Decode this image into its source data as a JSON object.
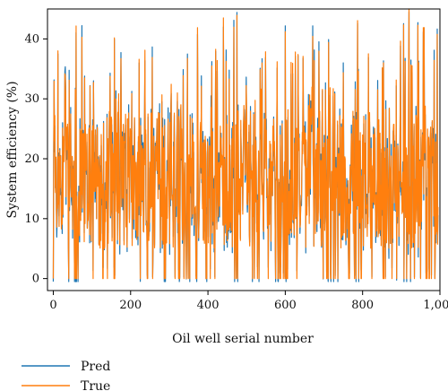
{
  "chart_data": {
    "type": "line",
    "xlabel": "Oil well serial number",
    "ylabel": "System efficiency (%)",
    "xlim": [
      -15,
      1000
    ],
    "ylim": [
      -2,
      45
    ],
    "xticks": [
      0,
      200,
      400,
      600,
      800,
      1000
    ],
    "xtick_labels": [
      "0",
      "200",
      "400",
      "600",
      "800",
      "1,000"
    ],
    "yticks": [
      0,
      10,
      20,
      30,
      40
    ],
    "yticks_labels": [
      "0",
      "10",
      "20",
      "30",
      "40"
    ],
    "legend_position": "bottom-left",
    "series": [
      {
        "name": "Pred",
        "color": "#1f77b4"
      },
      {
        "name": "True",
        "color": "#ff7f0e"
      }
    ],
    "x_range": [
      0,
      995
    ],
    "value_range": [
      0,
      45
    ],
    "typical_band": [
      5,
      28
    ]
  }
}
